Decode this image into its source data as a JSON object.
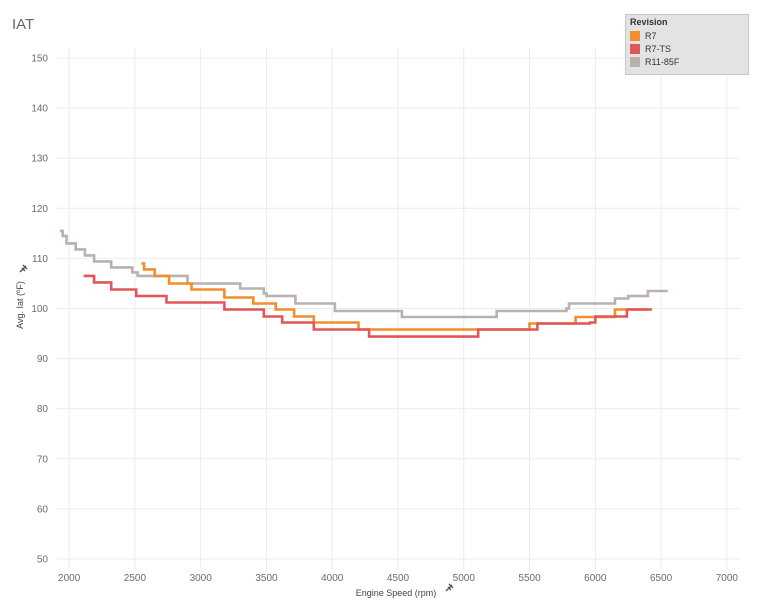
{
  "chart_data": {
    "type": "line",
    "title": "IAT",
    "xlabel": "Engine Speed (rpm)",
    "ylabel": "Avg. Iat (ºF)",
    "xlim": [
      1900,
      7100
    ],
    "ylim": [
      48,
      152
    ],
    "x_ticks": [
      2000,
      2500,
      3000,
      3500,
      4000,
      4500,
      5000,
      5500,
      6000,
      6500,
      7000
    ],
    "y_ticks": [
      50,
      60,
      70,
      80,
      90,
      100,
      110,
      120,
      130,
      140,
      150
    ],
    "legend": {
      "title": "Revision",
      "position": "top-right"
    },
    "series": [
      {
        "name": "R11-85F",
        "color": "#bab0ac",
        "points": [
          [
            1930,
            115.5
          ],
          [
            1950,
            114.5
          ],
          [
            1980,
            113
          ],
          [
            2050,
            111.8
          ],
          [
            2120,
            110.6
          ],
          [
            2190,
            109.4
          ],
          [
            2320,
            108.2
          ],
          [
            2480,
            107.2
          ],
          [
            2520,
            106.5
          ],
          [
            2900,
            105
          ],
          [
            3300,
            104
          ],
          [
            3480,
            103
          ],
          [
            3500,
            102.5
          ],
          [
            3720,
            101
          ],
          [
            4020,
            99.5
          ],
          [
            4530,
            98.3
          ],
          [
            5250,
            99.5
          ],
          [
            5780,
            100
          ],
          [
            5800,
            101
          ],
          [
            6150,
            102
          ],
          [
            6250,
            102.5
          ],
          [
            6400,
            103.5
          ],
          [
            6550,
            103.5
          ]
        ]
      },
      {
        "name": "R7",
        "color": "#f28e2b",
        "points": [
          [
            2550,
            109
          ],
          [
            2570,
            107.8
          ],
          [
            2650,
            106.5
          ],
          [
            2760,
            105
          ],
          [
            2930,
            103.8
          ],
          [
            3180,
            102.2
          ],
          [
            3400,
            101
          ],
          [
            3570,
            99.8
          ],
          [
            3710,
            98.4
          ],
          [
            3860,
            97.2
          ],
          [
            4200,
            95.8
          ],
          [
            5500,
            97
          ],
          [
            5850,
            98.3
          ],
          [
            6150,
            99.8
          ],
          [
            6400,
            99.8
          ]
        ]
      },
      {
        "name": "R7-TS",
        "color": "#e15759",
        "points": [
          [
            2110,
            106.5
          ],
          [
            2190,
            105.2
          ],
          [
            2320,
            103.8
          ],
          [
            2510,
            102.5
          ],
          [
            2740,
            101.2
          ],
          [
            3180,
            99.8
          ],
          [
            3480,
            98.4
          ],
          [
            3620,
            97.2
          ],
          [
            3860,
            95.8
          ],
          [
            4280,
            94.4
          ],
          [
            5110,
            95.8
          ],
          [
            5560,
            97
          ],
          [
            5960,
            97.2
          ],
          [
            6000,
            98.4
          ],
          [
            6240,
            99.8
          ],
          [
            6430,
            99.8
          ]
        ]
      }
    ]
  }
}
